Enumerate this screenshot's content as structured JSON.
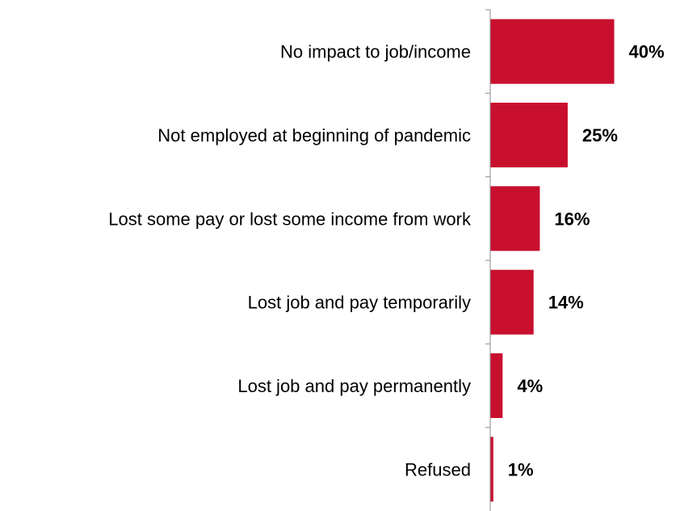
{
  "chart_data": {
    "type": "bar",
    "orientation": "horizontal",
    "categories": [
      "No impact to job/income",
      "Not employed at beginning of pandemic",
      "Lost some pay or lost some income from work",
      "Lost job and pay temporarily",
      "Lost job and pay permanently",
      "Refused"
    ],
    "values": [
      40,
      25,
      16,
      14,
      4,
      1
    ],
    "value_labels": [
      "40%",
      "25%",
      "16%",
      "14%",
      "4%",
      "1%"
    ],
    "unit": "%",
    "title": "",
    "xlabel": "",
    "ylabel": "",
    "xlim": [
      0,
      40
    ],
    "grid": false,
    "legend": "none",
    "bar_color": "#c8102e"
  }
}
